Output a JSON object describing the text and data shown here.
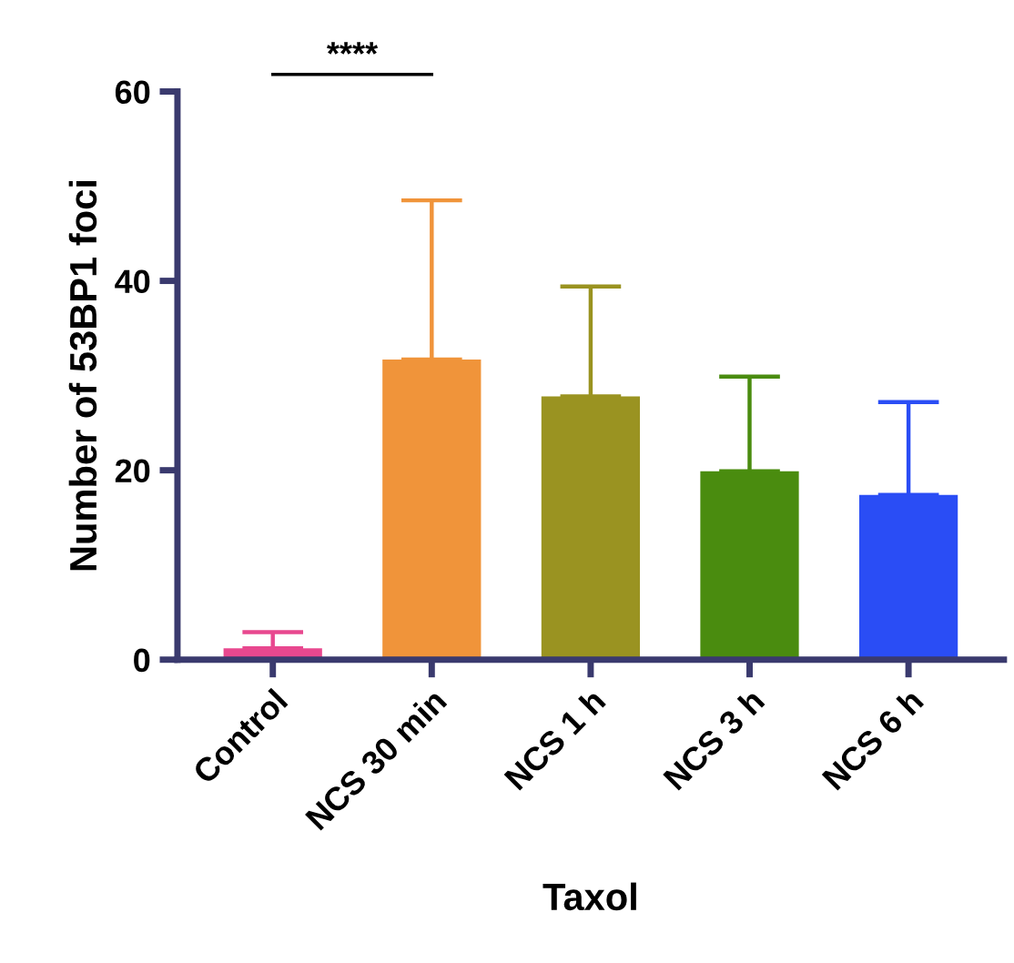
{
  "chart_data": {
    "type": "bar",
    "xlabel": "Taxol",
    "ylabel": "Number of 53BP1 foci",
    "categories": [
      "Control",
      "NCS 30 min",
      "NCS 1 h",
      "NCS 3 h",
      "NCS 6 h"
    ],
    "values": [
      1.2,
      31.7,
      27.8,
      19.9,
      17.4
    ],
    "colors": [
      "#e8488f",
      "#f0943a",
      "#9a9321",
      "#4a8c0f",
      "#2a4df5"
    ],
    "errors": [
      [
        1.2,
        2.9
      ],
      [
        31.7,
        48.5
      ],
      [
        27.8,
        39.4
      ],
      [
        19.9,
        29.9
      ],
      [
        17.4,
        27.2
      ]
    ],
    "ylim": [
      0,
      60
    ],
    "yticks": [
      0,
      20,
      40,
      60
    ],
    "grid": false,
    "legend": false,
    "annotations": [
      "****"
    ]
  }
}
